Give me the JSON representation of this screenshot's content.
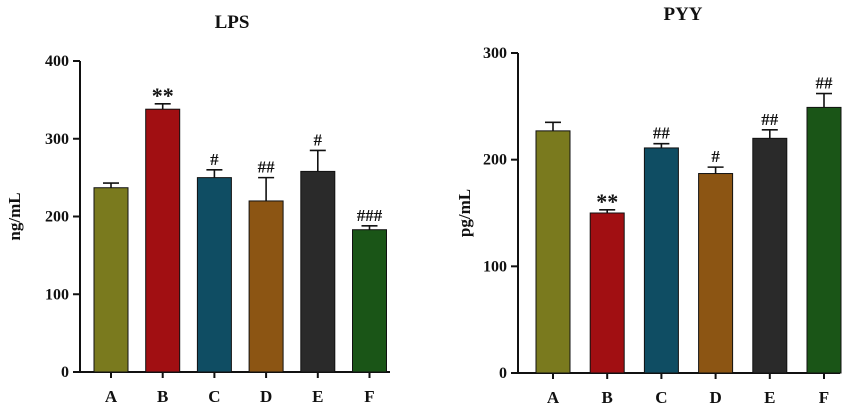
{
  "chart_data": [
    {
      "type": "bar",
      "title": "LPS",
      "xlabel": "",
      "ylabel": "ng/mL",
      "ylim": [
        0,
        400
      ],
      "yticks": [
        "0",
        "100",
        "200",
        "300",
        "400"
      ],
      "categories": [
        "A",
        "B",
        "C",
        "D",
        "E",
        "F"
      ],
      "values": [
        237,
        338,
        250,
        220,
        258,
        183
      ],
      "errors": [
        6,
        7,
        10,
        30,
        27,
        5
      ],
      "annotations": [
        "",
        "**",
        "#",
        "##",
        "#",
        "###"
      ],
      "colors": [
        "#7a7a1e",
        "#a10f12",
        "#0f4d63",
        "#8c5513",
        "#2a2a2a",
        "#1a5517"
      ],
      "grid": false
    },
    {
      "type": "bar",
      "title": "PYY",
      "xlabel": "",
      "ylabel": "pg/mL",
      "ylim": [
        0,
        300
      ],
      "yticks": [
        "0",
        "100",
        "200",
        "300"
      ],
      "categories": [
        "A",
        "B",
        "C",
        "D",
        "E",
        "F"
      ],
      "values": [
        227,
        150,
        211,
        187,
        220,
        249
      ],
      "errors": [
        8,
        3,
        4,
        6,
        8,
        13
      ],
      "annotations": [
        "",
        "**",
        "##",
        "#",
        "##",
        "##"
      ],
      "colors": [
        "#7a7a1e",
        "#a10f12",
        "#0f4d63",
        "#8c5513",
        "#2a2a2a",
        "#1a5517"
      ],
      "grid": false
    }
  ]
}
